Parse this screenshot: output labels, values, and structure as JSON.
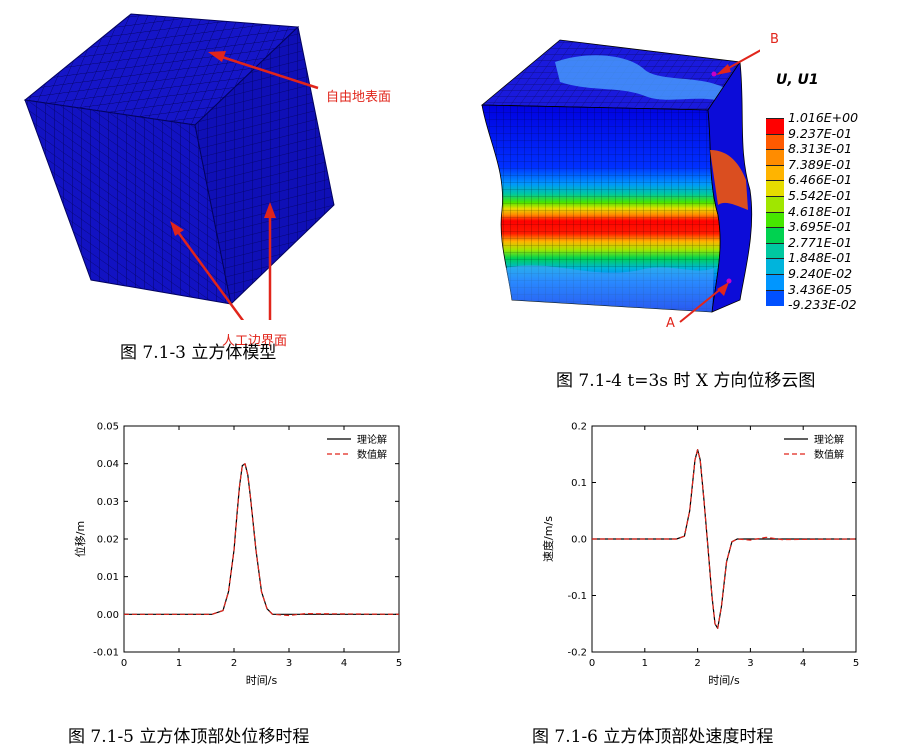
{
  "figures": {
    "fig3": {
      "caption": "图 7.1-3 立方体模型",
      "label_free_surface": "自由地表面",
      "label_artificial_boundary": "人工边界面"
    },
    "fig4": {
      "caption": "图 7.1-4 t=3s 时 X 方向位移云图",
      "point_a": "A",
      "point_b": "B",
      "legend_title": "U, U1",
      "legend_values": [
        "1.016E+00",
        "9.237E-01",
        "8.313E-01",
        "7.389E-01",
        "6.466E-01",
        "5.542E-01",
        "4.618E-01",
        "3.695E-01",
        "2.771E-01",
        "1.848E-01",
        "9.240E-02",
        "3.436E-05",
        "-9.233E-02"
      ],
      "legend_colors": [
        "#ff0000",
        "#ff5a00",
        "#ff8c00",
        "#ffb400",
        "#e6dc00",
        "#a0e600",
        "#46e600",
        "#00d250",
        "#00c8a0",
        "#00b4dc",
        "#0096ff",
        "#0050ff",
        "#0000e0"
      ]
    },
    "fig5": {
      "caption": "图 7.1-5 立方体顶部处位移时程"
    },
    "fig6": {
      "caption": "图 7.1-6 立方体顶部处速度时程"
    }
  },
  "chart_data": [
    {
      "type": "line",
      "xlabel": "时间/s",
      "ylabel": "位移/m",
      "xlim": [
        0,
        5
      ],
      "ylim": [
        -0.01,
        0.05
      ],
      "xticks": [
        "0",
        "1",
        "2",
        "3",
        "4",
        "5"
      ],
      "yticks": [
        "-0.01",
        "0.00",
        "0.01",
        "0.02",
        "0.03",
        "0.04",
        "0.05"
      ],
      "legend_position": "top-right",
      "series": [
        {
          "name": "理论解",
          "color": "#000000",
          "style": "solid",
          "x": [
            0,
            1.6,
            1.8,
            1.9,
            2.0,
            2.05,
            2.1,
            2.15,
            2.2,
            2.25,
            2.3,
            2.4,
            2.5,
            2.6,
            2.7,
            3.0,
            5.0
          ],
          "y": [
            0,
            0,
            0.001,
            0.006,
            0.017,
            0.026,
            0.034,
            0.0395,
            0.04,
            0.037,
            0.031,
            0.017,
            0.006,
            0.0015,
            0,
            0,
            0
          ]
        },
        {
          "name": "数值解",
          "color": "#e1251b",
          "style": "dashed",
          "x": [
            0,
            1.6,
            1.8,
            1.9,
            2.0,
            2.05,
            2.1,
            2.15,
            2.2,
            2.25,
            2.3,
            2.4,
            2.5,
            2.6,
            2.7,
            3.0,
            3.3,
            5.0
          ],
          "y": [
            0,
            0,
            0.001,
            0.006,
            0.017,
            0.026,
            0.034,
            0.0395,
            0.04,
            0.037,
            0.031,
            0.017,
            0.006,
            0.0015,
            0,
            -0.0003,
            0.0002,
            0
          ]
        }
      ]
    },
    {
      "type": "line",
      "xlabel": "时间/s",
      "ylabel": "速度/m/s",
      "xlim": [
        0,
        5
      ],
      "ylim": [
        -0.2,
        0.2
      ],
      "xticks": [
        "0",
        "1",
        "2",
        "3",
        "4",
        "5"
      ],
      "yticks": [
        "-0.2",
        "-0.1",
        "0.0",
        "0.1",
        "0.2"
      ],
      "legend_position": "top-right",
      "series": [
        {
          "name": "理论解",
          "color": "#000000",
          "style": "solid",
          "x": [
            0,
            1.6,
            1.75,
            1.85,
            1.95,
            2.0,
            2.05,
            2.12,
            2.2,
            2.27,
            2.33,
            2.38,
            2.45,
            2.55,
            2.65,
            2.75,
            5.0
          ],
          "y": [
            0,
            0,
            0.005,
            0.05,
            0.14,
            0.158,
            0.14,
            0.07,
            -0.02,
            -0.1,
            -0.15,
            -0.158,
            -0.12,
            -0.04,
            -0.005,
            0,
            0
          ]
        },
        {
          "name": "数值解",
          "color": "#e1251b",
          "style": "dashed",
          "x": [
            0,
            1.6,
            1.75,
            1.85,
            1.95,
            2.0,
            2.05,
            2.12,
            2.2,
            2.27,
            2.33,
            2.38,
            2.45,
            2.55,
            2.65,
            2.75,
            3.0,
            3.3,
            3.6,
            5.0
          ],
          "y": [
            0,
            0,
            0.005,
            0.05,
            0.14,
            0.158,
            0.14,
            0.07,
            -0.02,
            -0.1,
            -0.15,
            -0.158,
            -0.12,
            -0.04,
            -0.005,
            0,
            -0.002,
            0.003,
            -0.001,
            0
          ]
        }
      ]
    }
  ]
}
